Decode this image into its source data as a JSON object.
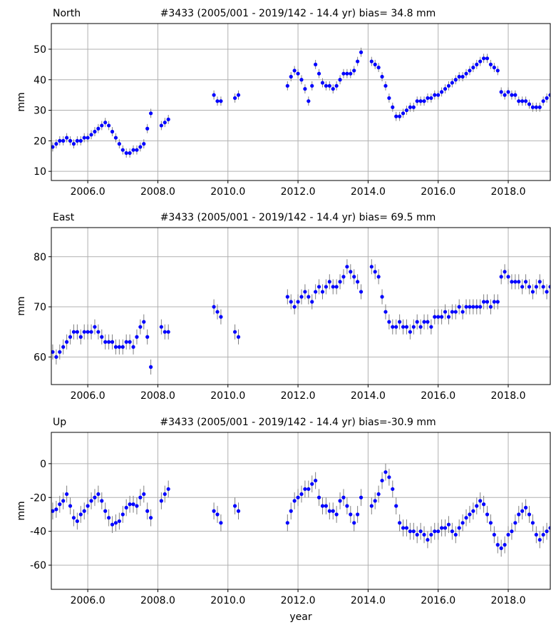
{
  "chart_data": [
    {
      "type": "scatter",
      "title": "North",
      "subtitle": "#3433 (2005/001 - 2019/142 - 14.4 yr) bias= 34.8 mm",
      "y_label": "mm",
      "color": "#0000ff",
      "ecolor": "#808080",
      "yerr": 1.5,
      "grid": true,
      "xlim": [
        2004.96,
        2019.2
      ],
      "ylim": [
        7,
        58.4
      ],
      "xticks": [
        {
          "value": 2006,
          "label": "2006.0"
        },
        {
          "value": 2008,
          "label": "2008.0"
        },
        {
          "value": 2010,
          "label": "2010.0"
        },
        {
          "value": 2012,
          "label": "2012.0"
        },
        {
          "value": 2014,
          "label": "2014.0"
        },
        {
          "value": 2016,
          "label": "2016.0"
        },
        {
          "value": 2018,
          "label": "2018.0"
        }
      ],
      "yticks": [
        10,
        20,
        30,
        40,
        50
      ],
      "x": [
        2005.0,
        2005.1,
        2005.2,
        2005.3,
        2005.4,
        2005.5,
        2005.6,
        2005.7,
        2005.8,
        2005.9,
        2006.0,
        2006.1,
        2006.2,
        2006.3,
        2006.4,
        2006.5,
        2006.6,
        2006.7,
        2006.8,
        2006.9,
        2007.0,
        2007.1,
        2007.2,
        2007.3,
        2007.4,
        2007.5,
        2007.6,
        2007.7,
        2007.8,
        2008.1,
        2008.2,
        2008.3,
        2009.6,
        2009.7,
        2009.8,
        2010.2,
        2010.3,
        2011.7,
        2011.8,
        2011.9,
        2012.0,
        2012.1,
        2012.2,
        2012.3,
        2012.4,
        2012.5,
        2012.6,
        2012.7,
        2012.8,
        2012.9,
        2013.0,
        2013.1,
        2013.2,
        2013.3,
        2013.4,
        2013.5,
        2013.6,
        2013.7,
        2013.8,
        2014.1,
        2014.2,
        2014.3,
        2014.4,
        2014.5,
        2014.6,
        2014.7,
        2014.8,
        2014.9,
        2015.0,
        2015.1,
        2015.2,
        2015.3,
        2015.4,
        2015.5,
        2015.6,
        2015.7,
        2015.8,
        2015.9,
        2016.0,
        2016.1,
        2016.2,
        2016.3,
        2016.4,
        2016.5,
        2016.6,
        2016.7,
        2016.8,
        2016.9,
        2017.0,
        2017.1,
        2017.2,
        2017.3,
        2017.4,
        2017.5,
        2017.6,
        2017.7,
        2017.8,
        2017.9,
        2018.0,
        2018.1,
        2018.2,
        2018.3,
        2018.4,
        2018.5,
        2018.6,
        2018.7,
        2018.8,
        2018.9,
        2019.0,
        2019.1,
        2019.2
      ],
      "values": [
        18,
        19,
        20,
        20,
        21,
        20,
        19,
        20,
        20,
        21,
        21,
        22,
        23,
        24,
        25,
        26,
        25,
        23,
        21,
        19,
        17,
        16,
        16,
        17,
        17,
        18,
        19,
        24,
        29,
        25,
        26,
        27,
        35,
        33,
        33,
        34,
        35,
        38,
        41,
        43,
        42,
        40,
        37,
        33,
        38,
        45,
        42,
        39,
        38,
        38,
        37,
        38,
        40,
        42,
        42,
        42,
        43,
        46,
        49,
        46,
        45,
        44,
        41,
        38,
        34,
        31,
        28,
        28,
        29,
        30,
        31,
        31,
        33,
        33,
        33,
        34,
        34,
        35,
        35,
        36,
        37,
        38,
        39,
        40,
        41,
        41,
        42,
        43,
        44,
        45,
        46,
        47,
        47,
        45,
        44,
        43,
        36,
        35,
        36,
        35,
        35,
        33,
        33,
        33,
        32,
        31,
        31,
        31,
        33,
        34,
        35
      ]
    },
    {
      "type": "scatter",
      "title": "East",
      "subtitle": "#3433 (2005/001 - 2019/142 - 14.4 yr) bias= 69.5 mm",
      "y_label": "mm",
      "color": "#0000ff",
      "ecolor": "#808080",
      "yerr": 1.5,
      "grid": true,
      "xlim": [
        2004.96,
        2019.2
      ],
      "ylim": [
        54.5,
        85.8
      ],
      "xticks": [
        {
          "value": 2006,
          "label": "2006.0"
        },
        {
          "value": 2008,
          "label": "2008.0"
        },
        {
          "value": 2010,
          "label": "2010.0"
        },
        {
          "value": 2012,
          "label": "2012.0"
        },
        {
          "value": 2014,
          "label": "2014.0"
        },
        {
          "value": 2016,
          "label": "2016.0"
        },
        {
          "value": 2018,
          "label": "2018.0"
        }
      ],
      "yticks": [
        60,
        70,
        80
      ],
      "x": [
        2005.0,
        2005.1,
        2005.2,
        2005.3,
        2005.4,
        2005.5,
        2005.6,
        2005.7,
        2005.8,
        2005.9,
        2006.0,
        2006.1,
        2006.2,
        2006.3,
        2006.4,
        2006.5,
        2006.6,
        2006.7,
        2006.8,
        2006.9,
        2007.0,
        2007.1,
        2007.2,
        2007.3,
        2007.4,
        2007.5,
        2007.6,
        2007.7,
        2007.8,
        2008.1,
        2008.2,
        2008.3,
        2009.6,
        2009.7,
        2009.8,
        2010.2,
        2010.3,
        2011.7,
        2011.8,
        2011.9,
        2012.0,
        2012.1,
        2012.2,
        2012.3,
        2012.4,
        2012.5,
        2012.6,
        2012.7,
        2012.8,
        2012.9,
        2013.0,
        2013.1,
        2013.2,
        2013.3,
        2013.4,
        2013.5,
        2013.6,
        2013.7,
        2013.8,
        2014.1,
        2014.2,
        2014.3,
        2014.4,
        2014.5,
        2014.6,
        2014.7,
        2014.8,
        2014.9,
        2015.0,
        2015.1,
        2015.2,
        2015.3,
        2015.4,
        2015.5,
        2015.6,
        2015.7,
        2015.8,
        2015.9,
        2016.0,
        2016.1,
        2016.2,
        2016.3,
        2016.4,
        2016.5,
        2016.6,
        2016.7,
        2016.8,
        2016.9,
        2017.0,
        2017.1,
        2017.2,
        2017.3,
        2017.4,
        2017.5,
        2017.6,
        2017.7,
        2017.8,
        2017.9,
        2018.0,
        2018.1,
        2018.2,
        2018.3,
        2018.4,
        2018.5,
        2018.6,
        2018.7,
        2018.8,
        2018.9,
        2019.0,
        2019.1,
        2019.2
      ],
      "values": [
        61,
        60,
        61,
        62,
        63,
        64,
        65,
        65,
        64,
        65,
        65,
        65,
        66,
        65,
        64,
        63,
        63,
        63,
        62,
        62,
        62,
        63,
        63,
        62,
        64,
        66,
        67,
        64,
        58,
        66,
        65,
        65,
        70,
        69,
        68,
        65,
        64,
        72,
        71,
        70,
        71,
        72,
        73,
        72,
        71,
        73,
        74,
        73,
        74,
        75,
        74,
        74,
        75,
        76,
        78,
        77,
        76,
        75,
        73,
        78,
        77,
        76,
        72,
        69,
        67,
        66,
        66,
        67,
        66,
        66,
        65,
        66,
        67,
        66,
        67,
        67,
        66,
        68,
        68,
        68,
        69,
        68,
        69,
        69,
        70,
        69,
        70,
        70,
        70,
        70,
        70,
        71,
        71,
        70,
        71,
        71,
        76,
        77,
        76,
        75,
        75,
        75,
        74,
        75,
        74,
        73,
        74,
        75,
        74,
        73,
        74
      ]
    },
    {
      "type": "scatter",
      "title": "Up",
      "subtitle": "#3433 (2005/001 - 2019/142 - 14.4 yr) bias=-30.9 mm",
      "y_label": "mm",
      "x_label": "year",
      "color": "#0000ff",
      "ecolor": "#808080",
      "yerr": 5,
      "grid": true,
      "xlim": [
        2004.96,
        2019.2
      ],
      "ylim": [
        -74.3,
        18.5
      ],
      "xticks": [
        {
          "value": 2006,
          "label": "2006.0"
        },
        {
          "value": 2008,
          "label": "2008.0"
        },
        {
          "value": 2010,
          "label": "2010.0"
        },
        {
          "value": 2012,
          "label": "2012.0"
        },
        {
          "value": 2014,
          "label": "2014.0"
        },
        {
          "value": 2016,
          "label": "2016.0"
        },
        {
          "value": 2018,
          "label": "2018.0"
        }
      ],
      "yticks": [
        -60,
        -40,
        -20,
        0
      ],
      "x": [
        2005.0,
        2005.1,
        2005.2,
        2005.3,
        2005.4,
        2005.5,
        2005.6,
        2005.7,
        2005.8,
        2005.9,
        2006.0,
        2006.1,
        2006.2,
        2006.3,
        2006.4,
        2006.5,
        2006.6,
        2006.7,
        2006.8,
        2006.9,
        2007.0,
        2007.1,
        2007.2,
        2007.3,
        2007.4,
        2007.5,
        2007.6,
        2007.7,
        2007.8,
        2008.1,
        2008.2,
        2008.3,
        2009.6,
        2009.7,
        2009.8,
        2010.2,
        2010.3,
        2011.7,
        2011.8,
        2011.9,
        2012.0,
        2012.1,
        2012.2,
        2012.3,
        2012.4,
        2012.5,
        2012.6,
        2012.7,
        2012.8,
        2012.9,
        2013.0,
        2013.1,
        2013.2,
        2013.3,
        2013.4,
        2013.5,
        2013.6,
        2013.7,
        2013.8,
        2014.1,
        2014.2,
        2014.3,
        2014.4,
        2014.5,
        2014.6,
        2014.7,
        2014.8,
        2014.9,
        2015.0,
        2015.1,
        2015.2,
        2015.3,
        2015.4,
        2015.5,
        2015.6,
        2015.7,
        2015.8,
        2015.9,
        2016.0,
        2016.1,
        2016.2,
        2016.3,
        2016.4,
        2016.5,
        2016.6,
        2016.7,
        2016.8,
        2016.9,
        2017.0,
        2017.1,
        2017.2,
        2017.3,
        2017.4,
        2017.5,
        2017.6,
        2017.7,
        2017.8,
        2017.9,
        2018.0,
        2018.1,
        2018.2,
        2018.3,
        2018.4,
        2018.5,
        2018.6,
        2018.7,
        2018.8,
        2018.9,
        2019.0,
        2019.1,
        2019.2
      ],
      "values": [
        -28,
        -27,
        -24,
        -22,
        -18,
        -25,
        -32,
        -34,
        -30,
        -28,
        -25,
        -22,
        -20,
        -18,
        -22,
        -28,
        -32,
        -36,
        -35,
        -34,
        -30,
        -26,
        -24,
        -24,
        -25,
        -20,
        -18,
        -28,
        -32,
        -22,
        -18,
        -15,
        -28,
        -30,
        -35,
        -25,
        -28,
        -35,
        -28,
        -22,
        -20,
        -18,
        -15,
        -15,
        -12,
        -10,
        -20,
        -25,
        -25,
        -28,
        -28,
        -30,
        -22,
        -20,
        -25,
        -30,
        -35,
        -30,
        -20,
        -25,
        -22,
        -18,
        -10,
        -5,
        -8,
        -15,
        -25,
        -35,
        -38,
        -38,
        -40,
        -40,
        -42,
        -40,
        -42,
        -45,
        -42,
        -40,
        -40,
        -38,
        -38,
        -36,
        -40,
        -42,
        -38,
        -35,
        -32,
        -30,
        -28,
        -25,
        -22,
        -24,
        -30,
        -35,
        -42,
        -48,
        -50,
        -48,
        -42,
        -40,
        -35,
        -30,
        -28,
        -26,
        -30,
        -35,
        -42,
        -45,
        -42,
        -40,
        -38
      ]
    }
  ]
}
